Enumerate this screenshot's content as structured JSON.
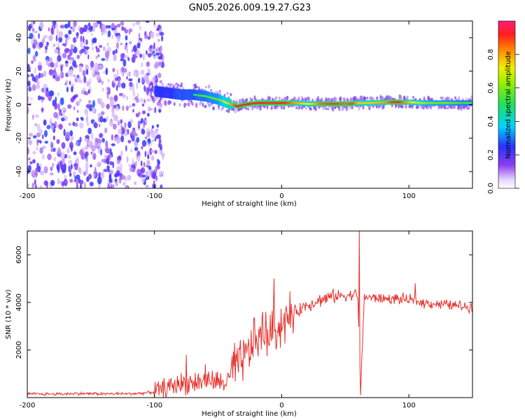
{
  "chart_data": [
    {
      "type": "heatmap",
      "title": "GN05.2026.009.19.27.G23",
      "xlabel": "Height of straight line (km)",
      "ylabel": "Frequency (Hz)",
      "xlim": [
        -200,
        150
      ],
      "ylim": [
        -50,
        50
      ],
      "xticks": [
        -200,
        -100,
        0,
        100
      ],
      "xtick_labels": [
        "-200",
        "-100",
        "0",
        "100"
      ],
      "yticks": [
        -40,
        -20,
        0,
        20,
        40
      ],
      "ytick_labels": [
        "-40",
        "-20",
        "0",
        "20",
        "40"
      ],
      "noise_region_x": [
        -200,
        -93
      ],
      "signal_ridge": {
        "x": [
          -100,
          -90,
          -80,
          -70,
          -60,
          -50,
          -40,
          -35,
          -30,
          -20,
          -10,
          0,
          10,
          20,
          30,
          40,
          50,
          55,
          60,
          70,
          80,
          90,
          100,
          110,
          120,
          130,
          140,
          150
        ],
        "freq": [
          8,
          7,
          6,
          6,
          5,
          3,
          0,
          -1,
          0,
          1,
          1,
          1,
          1,
          0.5,
          0.5,
          0.5,
          0.5,
          0.5,
          1,
          1,
          1.5,
          1.5,
          1.5,
          1,
          1,
          1,
          1,
          1
        ],
        "amp": [
          0.3,
          0.45,
          0.5,
          0.5,
          0.55,
          0.6,
          0.8,
          0.95,
          0.9,
          0.95,
          0.9,
          0.95,
          0.8,
          0.7,
          0.85,
          0.9,
          0.85,
          0.9,
          0.75,
          0.75,
          0.8,
          0.95,
          0.75,
          0.65,
          0.6,
          0.6,
          0.55,
          0.55
        ]
      },
      "colorbar": {
        "label": "Normalized spectral amplitude",
        "ticks": [
          0.0,
          0.2,
          0.4,
          0.6,
          0.8
        ],
        "tick_labels": [
          "0.0",
          "0.2",
          "0.4",
          "0.6",
          "0.8"
        ],
        "range": [
          0,
          1
        ]
      }
    },
    {
      "type": "line",
      "title": "",
      "xlabel": "Height of straight line (km)",
      "ylabel": "SNR (10 * v/v)",
      "xlim": [
        -200,
        150
      ],
      "ylim": [
        0,
        7000
      ],
      "xticks": [
        -200,
        -100,
        0,
        100
      ],
      "xtick_labels": [
        "-200",
        "-100",
        "0",
        "100"
      ],
      "yticks": [
        2000,
        4000,
        6000
      ],
      "ytick_labels": [
        "2000",
        "4000",
        "6000"
      ],
      "series": [
        {
          "name": "SNR",
          "color": "#e8302c",
          "x": [
            -200,
            -180,
            -160,
            -140,
            -120,
            -105,
            -100,
            -95,
            -90,
            -85,
            -80,
            -75,
            -70,
            -65,
            -60,
            -55,
            -50,
            -45,
            -40,
            -35,
            -30,
            -25,
            -20,
            -15,
            -10,
            -5,
            0,
            5,
            10,
            15,
            20,
            25,
            30,
            40,
            50,
            55,
            58,
            60,
            62,
            65,
            70,
            80,
            90,
            100,
            110,
            120,
            130,
            140,
            150
          ],
          "y": [
            150,
            150,
            170,
            160,
            160,
            200,
            250,
            300,
            400,
            500,
            600,
            600,
            650,
            650,
            700,
            700,
            650,
            600,
            900,
            1200,
            1600,
            2000,
            2400,
            2600,
            2700,
            2900,
            3100,
            3350,
            3550,
            3750,
            3900,
            4000,
            4100,
            4250,
            4300,
            4300,
            4400,
            4100,
            200,
            4250,
            4200,
            4150,
            4150,
            4100,
            4000,
            3950,
            3900,
            3850,
            3800
          ]
        }
      ],
      "spikes": [
        {
          "x": -75,
          "y": 1800
        },
        {
          "x": -60,
          "y": 1400
        },
        {
          "x": -37,
          "y": 2300
        },
        {
          "x": -22,
          "y": 3300
        },
        {
          "x": -15,
          "y": 3600
        },
        {
          "x": -6,
          "y": 5000
        },
        {
          "x": 61,
          "y": 7000
        },
        {
          "x": 62,
          "y": 100
        },
        {
          "x": 105,
          "y": 4800
        }
      ]
    }
  ]
}
